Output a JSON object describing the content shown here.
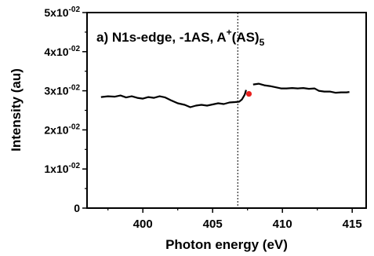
{
  "chart_data": {
    "type": "line",
    "title": "a) N1s-edge,  -1AS, A",
    "title_sup": "+",
    "title_tail": "(AS)",
    "title_sub": "5",
    "xlabel": "Photon energy (eV)",
    "ylabel": "Intensity (au)",
    "xlim": [
      396,
      416
    ],
    "ylim": [
      0,
      0.05
    ],
    "x_ticks": [
      {
        "value": 400,
        "label": "400"
      },
      {
        "value": 405,
        "label": "405"
      },
      {
        "value": 410,
        "label": "410"
      },
      {
        "value": 415,
        "label": "415"
      }
    ],
    "y_ticks": [
      {
        "value": 0,
        "label": "0",
        "exp": ""
      },
      {
        "value": 0.01,
        "label": "1x10",
        "exp": "-02"
      },
      {
        "value": 0.02,
        "label": "2x10",
        "exp": "-02"
      },
      {
        "value": 0.03,
        "label": "3x10",
        "exp": "-02"
      },
      {
        "value": 0.04,
        "label": "4x10",
        "exp": "-02"
      },
      {
        "value": 0.05,
        "label": "5x10",
        "exp": "-02"
      }
    ],
    "grid": false,
    "vline": {
      "x": 406.8,
      "style": "dotted"
    },
    "marker": {
      "x": 407.6,
      "y": 0.0292,
      "color": "#e8201e"
    },
    "series": [
      {
        "color": "#000000",
        "segments": [
          [
            [
              397.0,
              0.0284
            ],
            [
              397.5,
              0.0286
            ],
            [
              398.0,
              0.0285
            ],
            [
              398.4,
              0.0288
            ],
            [
              398.8,
              0.0283
            ],
            [
              399.2,
              0.0286
            ],
            [
              399.6,
              0.0282
            ],
            [
              400.0,
              0.028
            ],
            [
              400.4,
              0.0284
            ],
            [
              400.8,
              0.0282
            ],
            [
              401.2,
              0.0286
            ],
            [
              401.6,
              0.0283
            ],
            [
              402.0,
              0.0276
            ],
            [
              402.5,
              0.0268
            ],
            [
              403.0,
              0.0264
            ],
            [
              403.4,
              0.0258
            ],
            [
              403.8,
              0.0262
            ],
            [
              404.2,
              0.0264
            ],
            [
              404.6,
              0.0262
            ],
            [
              405.0,
              0.0265
            ],
            [
              405.4,
              0.0268
            ],
            [
              405.8,
              0.0266
            ],
            [
              406.2,
              0.027
            ],
            [
              406.6,
              0.0271
            ],
            [
              406.9,
              0.0272
            ],
            [
              407.1,
              0.0278
            ],
            [
              407.3,
              0.029
            ],
            [
              407.4,
              0.0302
            ]
          ],
          [
            [
              407.9,
              0.0316
            ],
            [
              408.3,
              0.0318
            ],
            [
              408.7,
              0.0314
            ],
            [
              409.1,
              0.0312
            ],
            [
              409.5,
              0.0309
            ],
            [
              409.9,
              0.0306
            ],
            [
              410.3,
              0.0306
            ],
            [
              410.7,
              0.0307
            ],
            [
              411.1,
              0.0306
            ],
            [
              411.5,
              0.0307
            ],
            [
              411.9,
              0.0305
            ],
            [
              412.3,
              0.0306
            ],
            [
              412.6,
              0.03
            ],
            [
              413.0,
              0.0298
            ],
            [
              413.4,
              0.0298
            ],
            [
              413.8,
              0.0295
            ],
            [
              414.2,
              0.0296
            ],
            [
              414.6,
              0.0296
            ],
            [
              414.8,
              0.0297
            ]
          ]
        ]
      }
    ]
  }
}
